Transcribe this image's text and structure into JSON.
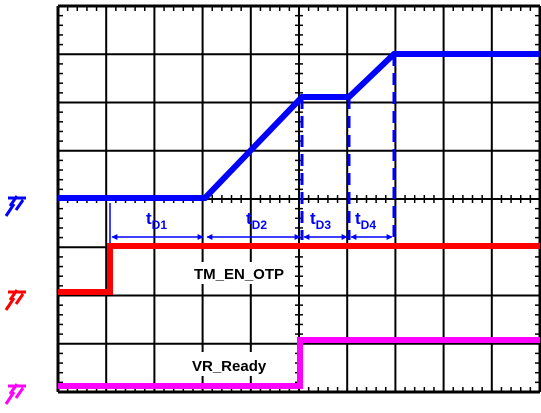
{
  "signals": {
    "tm_en_otp": {
      "label": "TM_EN_OTP",
      "color": "#ff0000"
    },
    "vr_ready": {
      "label": "VR_Ready",
      "color": "#ff00ff"
    },
    "voltage": {
      "color": "#0000ff"
    }
  },
  "intervals": [
    {
      "main": "t",
      "sub": "D1"
    },
    {
      "main": "t",
      "sub": "D2"
    },
    {
      "main": "t",
      "sub": "D3"
    },
    {
      "main": "t",
      "sub": "D4"
    }
  ],
  "ground_markers": [
    {
      "channel": "voltage",
      "icon": "ground-marker-icon",
      "color": "#0000ff"
    },
    {
      "channel": "tm_en_otp",
      "icon": "ground-marker-icon",
      "color": "#ff0000"
    },
    {
      "channel": "vr_ready",
      "icon": "ground-marker-icon",
      "color": "#ff00ff"
    }
  ],
  "grid": {
    "cols": 10,
    "rows": 8,
    "minor_per_div": 5
  }
}
